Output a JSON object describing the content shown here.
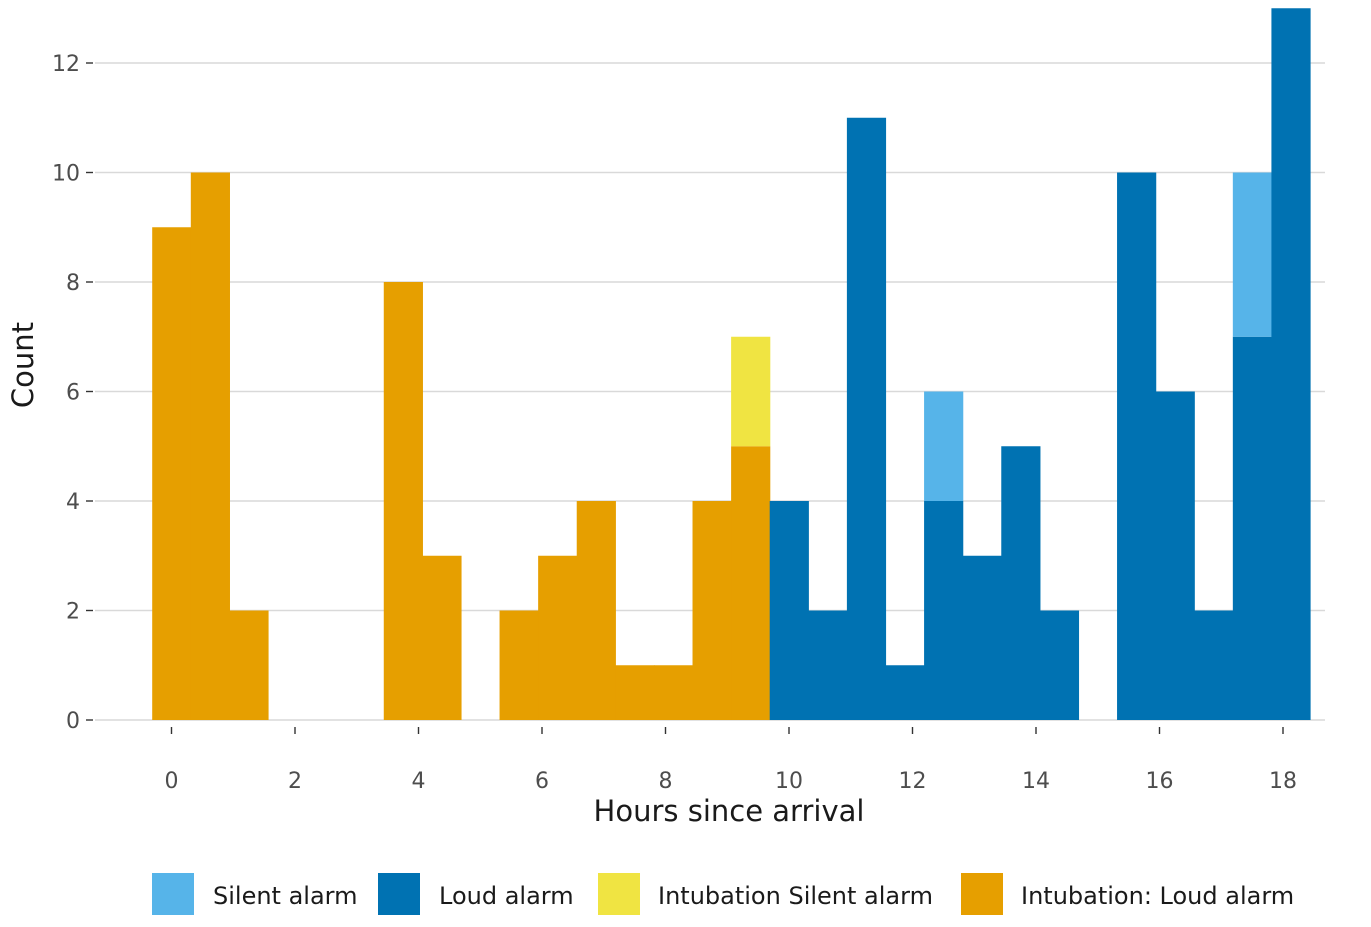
{
  "chart_data": {
    "type": "bar",
    "stacked": true,
    "xlabel": "Hours since arrival",
    "ylabel": "Count",
    "xlim": [
      -0.6,
      18.7
    ],
    "ylim": [
      0,
      13
    ],
    "bin_width": 0.625,
    "x_ticks": [
      0,
      2,
      4,
      6,
      8,
      10,
      12,
      14,
      16,
      18
    ],
    "y_ticks": [
      0,
      2,
      4,
      6,
      8,
      10,
      12
    ],
    "grid": "horizontal",
    "legend_position": "bottom",
    "x": [
      0,
      0.625,
      1.25,
      1.875,
      2.5,
      3.125,
      3.75,
      4.375,
      5.0,
      5.625,
      6.25,
      6.875,
      7.5,
      8.125,
      8.75,
      9.375,
      10.0,
      10.625,
      11.25,
      11.875,
      12.5,
      13.125,
      13.75,
      14.375,
      15.0,
      15.625,
      16.25,
      16.875,
      17.5,
      18.125
    ],
    "series": [
      {
        "name": "Intubation: Loud alarm",
        "color": "#E69F00",
        "values": [
          9,
          10,
          2,
          0,
          0,
          0,
          8,
          3,
          0,
          2,
          3,
          4,
          1,
          1,
          4,
          5,
          0,
          0,
          0,
          0,
          0,
          0,
          0,
          0,
          0,
          0,
          0,
          0,
          0,
          0
        ]
      },
      {
        "name": "Intubation Silent alarm",
        "color": "#F0E442",
        "values": [
          0,
          0,
          0,
          0,
          0,
          0,
          0,
          0,
          0,
          0,
          0,
          0,
          0,
          0,
          0,
          2,
          0,
          0,
          0,
          0,
          0,
          0,
          0,
          0,
          0,
          0,
          0,
          0,
          0,
          0
        ]
      },
      {
        "name": "Loud alarm",
        "color": "#0072B2",
        "values": [
          0,
          0,
          0,
          0,
          0,
          0,
          0,
          0,
          0,
          0,
          0,
          0,
          0,
          0,
          0,
          0,
          4,
          2,
          11,
          1,
          4,
          3,
          5,
          2,
          0,
          10,
          6,
          2,
          7,
          13
        ]
      },
      {
        "name": "Silent alarm",
        "color": "#56B4E9",
        "values": [
          0,
          0,
          0,
          0,
          0,
          0,
          0,
          0,
          0,
          0,
          0,
          0,
          0,
          0,
          0,
          0,
          0,
          0,
          0,
          0,
          2,
          0,
          0,
          0,
          0,
          0,
          0,
          0,
          3,
          0
        ]
      }
    ],
    "legend_order": [
      "Silent alarm",
      "Loud alarm",
      "Intubation Silent alarm",
      "Intubation: Loud alarm"
    ]
  }
}
